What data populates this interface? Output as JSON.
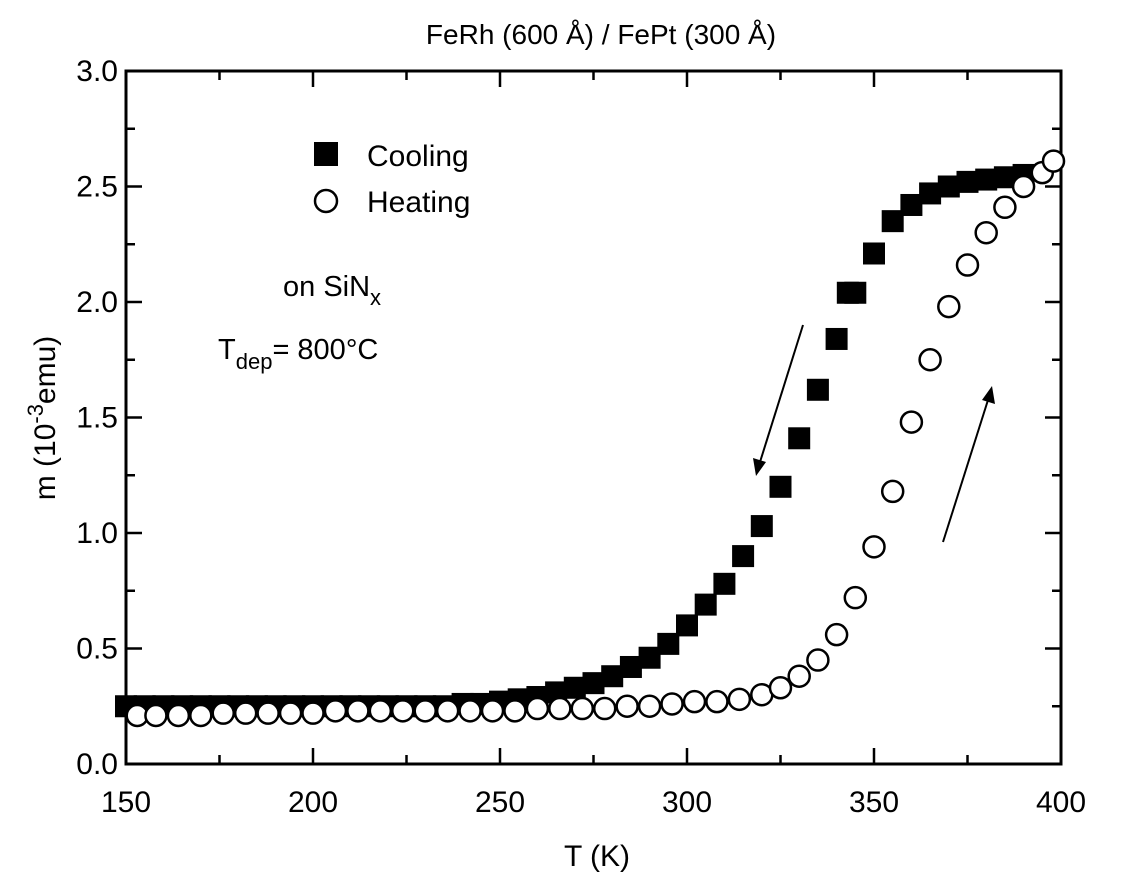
{
  "chart_data": {
    "type": "scatter",
    "title": "FeRh (600 Å) / FePt (300 Å)",
    "xlabel": "T (K)",
    "ylabel_prefix": "m (10",
    "ylabel_exp": "-3",
    "ylabel_suffix": "emu)",
    "xlim": [
      150,
      400
    ],
    "ylim": [
      0,
      3.0
    ],
    "x_ticks": [
      "150",
      "200",
      "250",
      "300",
      "350",
      "400"
    ],
    "y_ticks": [
      "0.0",
      "0.5",
      "1.0",
      "1.5",
      "2.0",
      "2.5",
      "3.0"
    ],
    "legend": {
      "position": "top-left",
      "entries": [
        "Cooling",
        "Heating"
      ]
    },
    "annotations": {
      "substrate_prefix": "on SiN",
      "substrate_sub": "x",
      "tdep_prefix": "T",
      "tdep_sub": "dep",
      "tdep_value": "= 800°C"
    },
    "series": [
      {
        "name": "Cooling",
        "marker": "filled-square",
        "x": [
          150,
          155,
          160,
          165,
          170,
          175,
          180,
          185,
          190,
          195,
          200,
          205,
          210,
          215,
          220,
          225,
          230,
          235,
          240,
          245,
          250,
          255,
          260,
          265,
          270,
          275,
          280,
          285,
          290,
          295,
          300,
          305,
          310,
          315,
          320,
          325,
          330,
          335,
          340,
          343,
          345,
          350,
          355,
          360,
          365,
          370,
          375,
          380,
          385,
          390
        ],
        "y": [
          0.25,
          0.25,
          0.25,
          0.25,
          0.25,
          0.25,
          0.25,
          0.25,
          0.25,
          0.25,
          0.25,
          0.25,
          0.25,
          0.25,
          0.25,
          0.25,
          0.25,
          0.25,
          0.26,
          0.26,
          0.27,
          0.28,
          0.29,
          0.31,
          0.33,
          0.35,
          0.38,
          0.42,
          0.46,
          0.52,
          0.6,
          0.69,
          0.78,
          0.9,
          1.03,
          1.2,
          1.41,
          1.62,
          1.84,
          2.04,
          2.04,
          2.21,
          2.35,
          2.42,
          2.47,
          2.5,
          2.52,
          2.53,
          2.54,
          2.55
        ]
      },
      {
        "name": "Heating",
        "marker": "open-circle",
        "x": [
          153,
          158,
          164,
          170,
          176,
          182,
          188,
          194,
          200,
          206,
          212,
          218,
          224,
          230,
          236,
          242,
          248,
          254,
          260,
          266,
          272,
          278,
          284,
          290,
          296,
          302,
          308,
          314,
          320,
          325,
          330,
          335,
          340,
          345,
          350,
          355,
          360,
          365,
          370,
          375,
          380,
          385,
          390,
          395,
          398
        ],
        "y": [
          0.21,
          0.21,
          0.21,
          0.21,
          0.22,
          0.22,
          0.22,
          0.22,
          0.22,
          0.23,
          0.23,
          0.23,
          0.23,
          0.23,
          0.23,
          0.23,
          0.23,
          0.23,
          0.24,
          0.24,
          0.24,
          0.24,
          0.25,
          0.25,
          0.26,
          0.27,
          0.27,
          0.28,
          0.3,
          0.33,
          0.38,
          0.45,
          0.56,
          0.72,
          0.94,
          1.18,
          1.48,
          1.75,
          1.98,
          2.16,
          2.3,
          2.41,
          2.5,
          2.56,
          2.61
        ]
      }
    ]
  }
}
